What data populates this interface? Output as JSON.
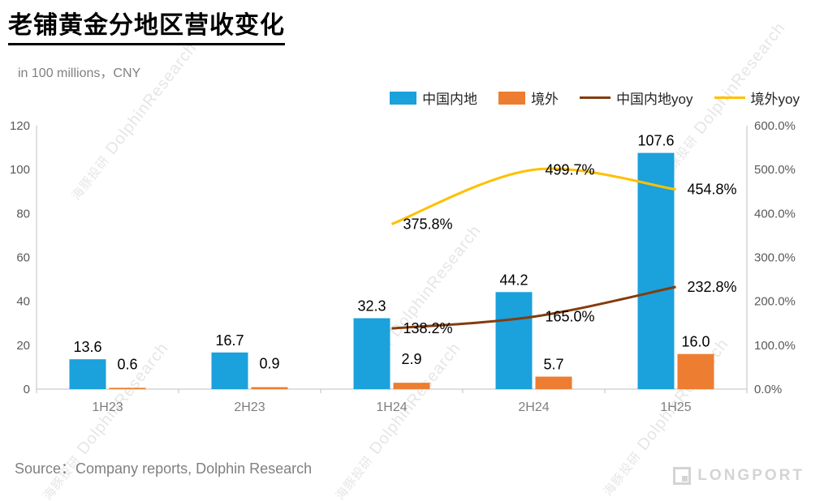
{
  "header": {
    "title": "老铺黄金分地区营收变化",
    "subtitle": "in 100 millions，CNY"
  },
  "legend": [
    {
      "label": "中国内地",
      "type": "bar",
      "color": "#1BA1DC"
    },
    {
      "label": "境外",
      "type": "bar",
      "color": "#ED7D31"
    },
    {
      "label": "中国内地yoy",
      "type": "line",
      "color": "#833C0C"
    },
    {
      "label": "境外yoy",
      "type": "line",
      "color": "#FFC000"
    }
  ],
  "chart_data": {
    "type": "bar+line",
    "categories": [
      "1H23",
      "2H23",
      "1H24",
      "2H24",
      "1H25"
    ],
    "left_axis": {
      "min": 0,
      "max": 120,
      "step": 20,
      "ticks": [
        "0",
        "20",
        "40",
        "60",
        "80",
        "100",
        "120"
      ]
    },
    "right_axis": {
      "min": 0,
      "max": 600,
      "step": 100,
      "ticks": [
        "0.0%",
        "100.0%",
        "200.0%",
        "300.0%",
        "400.0%",
        "500.0%",
        "600.0%"
      ]
    },
    "bar_series": [
      {
        "name": "中国内地",
        "axis": "left",
        "color": "#1BA1DC",
        "values": [
          13.6,
          16.7,
          32.3,
          44.2,
          107.6
        ],
        "labels": [
          "13.6",
          "16.7",
          "32.3",
          "44.2",
          "107.6"
        ]
      },
      {
        "name": "境外",
        "axis": "left",
        "color": "#ED7D31",
        "values": [
          0.6,
          0.9,
          2.9,
          5.7,
          16.0
        ],
        "labels": [
          "0.6",
          "0.9",
          "2.9",
          "5.7",
          "16.0"
        ]
      }
    ],
    "line_series": [
      {
        "name": "中国内地yoy",
        "axis": "right",
        "color": "#833C0C",
        "values": [
          null,
          null,
          138.2,
          165.0,
          232.8
        ],
        "labels": [
          "",
          "",
          "138.2%",
          "165.0%",
          "232.8%"
        ]
      },
      {
        "name": "境外yoy",
        "axis": "right",
        "color": "#FFC000",
        "values": [
          null,
          null,
          375.8,
          499.7,
          454.8
        ],
        "labels": [
          "",
          "",
          "375.8%",
          "499.7%",
          "454.8%"
        ]
      }
    ],
    "legend_position": "top-right",
    "grid": false
  },
  "watermark": {
    "cn": "海豚投研",
    "en": "DolphinResearch"
  },
  "footer": {
    "source": "Source：Company reports, Dolphin Research"
  },
  "brand": {
    "name": "LONGPORT"
  }
}
